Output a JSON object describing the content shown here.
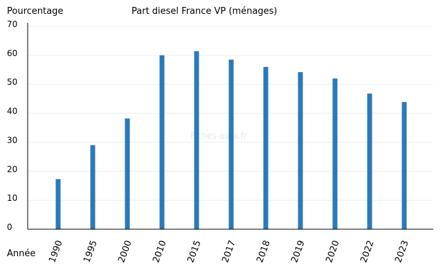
{
  "chart_data": {
    "type": "bar",
    "title": "Part diesel France VP (ménages)",
    "ylabel": "Pourcentage",
    "xlabel": "Année",
    "watermark": "Fiches-auto.fr",
    "categories": [
      "1990",
      "1995",
      "2000",
      "2010",
      "2015",
      "2017",
      "2018",
      "2019",
      "2020",
      "2022",
      "2023"
    ],
    "values": [
      17.3,
      29.0,
      38.2,
      60.0,
      61.4,
      58.5,
      56.0,
      54.2,
      52.0,
      46.8,
      43.9
    ],
    "ylim": [
      0,
      70
    ],
    "yticks": [
      0,
      10,
      20,
      30,
      40,
      50,
      60,
      70
    ],
    "grid": true,
    "legend": "none",
    "bar_color": "#2a7ab9",
    "grid_color": "#eeeeee"
  }
}
